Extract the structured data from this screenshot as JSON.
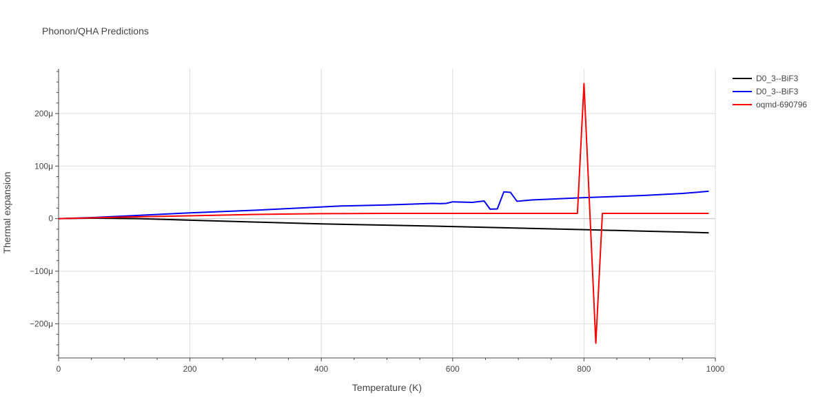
{
  "chart_data": {
    "type": "line",
    "title": "Phonon/QHA Predictions",
    "xlabel": "Temperature (K)",
    "ylabel": "Thermal expansion",
    "xlim": [
      0,
      1000
    ],
    "ylim": [
      -0.000265,
      0.000285
    ],
    "x_ticks": [
      0,
      200,
      400,
      600,
      800,
      1000
    ],
    "x_tick_labels": [
      "0",
      "200",
      "400",
      "600",
      "800",
      "1000"
    ],
    "y_ticks": [
      -0.0002,
      -0.0001,
      0,
      0.0001,
      0.0002
    ],
    "y_tick_labels": [
      "−200μ",
      "−100μ",
      "0",
      "100μ",
      "200μ"
    ],
    "grid": true,
    "legend_position": "top-right",
    "series": [
      {
        "name": "D0_3--BiF3",
        "color": "#000000",
        "x": [
          0,
          50,
          120,
          200,
          300,
          400,
          500,
          600,
          700,
          800,
          900,
          950,
          990
        ],
        "y": [
          0,
          1e-06,
          0,
          -3e-06,
          -6.5e-06,
          -1e-05,
          -1.25e-05,
          -1.5e-05,
          -1.8e-05,
          -2.1e-05,
          -2.4e-05,
          -2.55e-05,
          -2.7e-05
        ]
      },
      {
        "name": "D0_3--BiF3",
        "color": "#0000ee",
        "x": [
          0,
          50,
          100,
          200,
          300,
          430,
          500,
          570,
          580,
          590,
          600,
          630,
          648,
          657,
          668,
          678,
          688,
          698,
          720,
          800,
          890,
          950,
          990
        ],
        "y": [
          0,
          2e-06,
          5e-06,
          1.1e-05,
          1.6e-05,
          2.4e-05,
          2.6e-05,
          2.9e-05,
          2.85e-05,
          2.9e-05,
          3.2e-05,
          3.1e-05,
          3.35e-05,
          1.8e-05,
          1.85e-05,
          5.1e-05,
          5e-05,
          3.3e-05,
          3.55e-05,
          4e-05,
          4.4e-05,
          4.8e-05,
          5.2e-05
        ]
      },
      {
        "name": "oqmd-690796",
        "color": "#ff0000",
        "x": [
          0,
          100,
          200,
          300,
          400,
          500,
          600,
          700,
          790,
          800,
          818,
          828,
          900,
          990
        ],
        "y": [
          0,
          3e-06,
          5.5e-06,
          8e-06,
          9.5e-06,
          1e-05,
          1e-05,
          1e-05,
          1e-05,
          0.000257,
          -0.000237,
          1e-05,
          1e-05,
          1e-05
        ]
      }
    ]
  }
}
